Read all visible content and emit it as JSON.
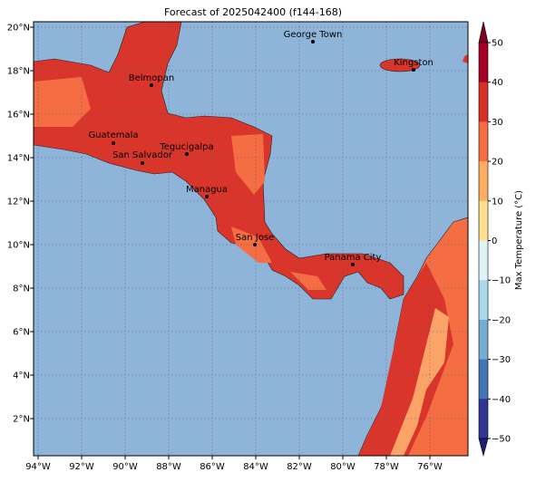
{
  "title": "Forecast of 2025042400 (f144-168)",
  "longitude_labels": [
    "94°W",
    "92°W",
    "90°W",
    "88°W",
    "86°W",
    "84°W",
    "82°W",
    "80°W",
    "78°W",
    "76°W"
  ],
  "latitude_labels": [
    "20°N",
    "18°N",
    "16°N",
    "14°N",
    "12°N",
    "10°N",
    "8°N",
    "6°N",
    "4°N",
    "2°N"
  ],
  "cities": [
    {
      "name": "George Town"
    },
    {
      "name": "Kingston"
    },
    {
      "name": "Belmopan"
    },
    {
      "name": "Guatemala"
    },
    {
      "name": "San Salvador"
    },
    {
      "name": "Tegucigalpa"
    },
    {
      "name": "Managua"
    },
    {
      "name": "San Jose"
    },
    {
      "name": "Panama City"
    }
  ],
  "colorbar": {
    "label": "Max Temperature (°C)",
    "tick_labels": [
      "50",
      "40",
      "30",
      "20",
      "10",
      "0",
      "−10",
      "−20",
      "−30",
      "−40",
      "−50"
    ]
  }
}
